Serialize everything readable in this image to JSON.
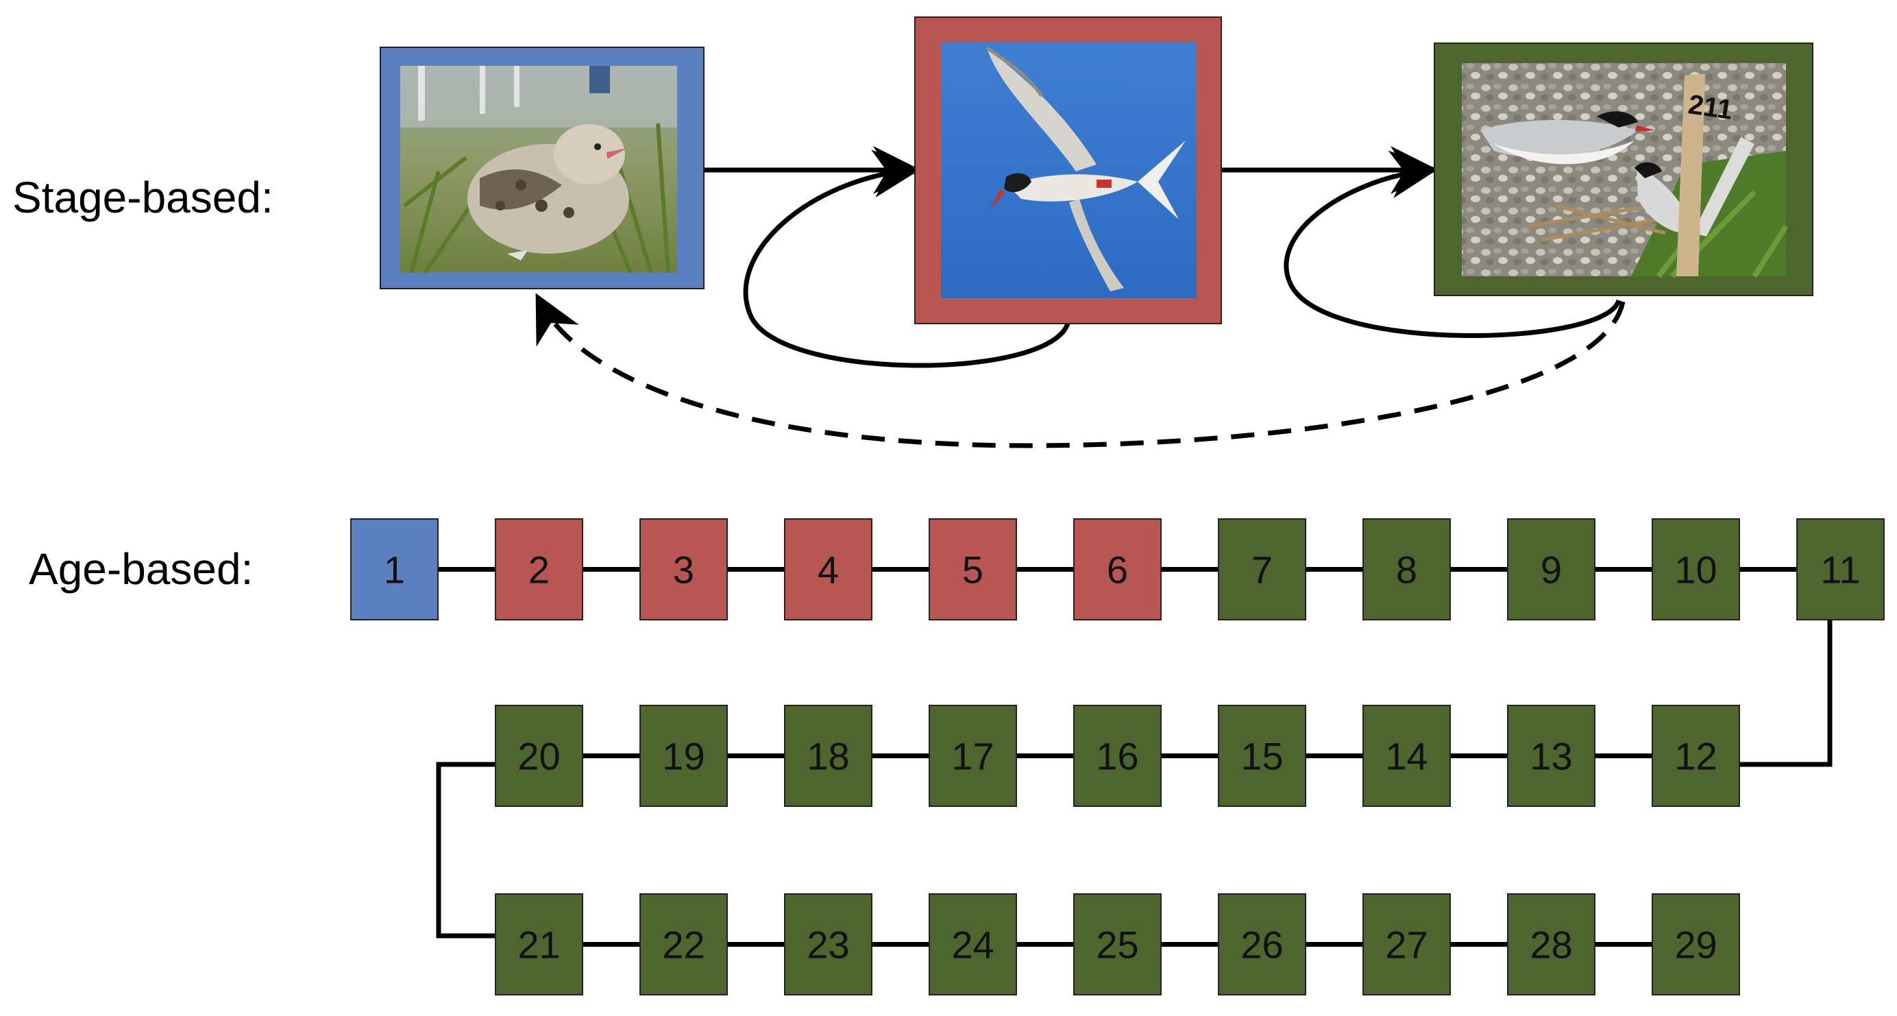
{
  "labels": {
    "stage_based": "Stage-based:",
    "age_based": "Age-based:"
  },
  "stages": [
    {
      "name": "chick",
      "image": "tern chick photo",
      "color": "#5b7fbf"
    },
    {
      "name": "juvenile",
      "image": "tern in flight photo",
      "color": "#b75652"
    },
    {
      "name": "adult",
      "image": "breeding adult terns photo",
      "color": "#4e6530"
    }
  ],
  "ages": [
    {
      "label": "1",
      "stage": 0
    },
    {
      "label": "2",
      "stage": 1
    },
    {
      "label": "3",
      "stage": 1
    },
    {
      "label": "4",
      "stage": 1
    },
    {
      "label": "5",
      "stage": 1
    },
    {
      "label": "6",
      "stage": 1
    },
    {
      "label": "7",
      "stage": 2
    },
    {
      "label": "8",
      "stage": 2
    },
    {
      "label": "9",
      "stage": 2
    },
    {
      "label": "10",
      "stage": 2
    },
    {
      "label": "11",
      "stage": 2
    },
    {
      "label": "12",
      "stage": 2
    },
    {
      "label": "13",
      "stage": 2
    },
    {
      "label": "14",
      "stage": 2
    },
    {
      "label": "15",
      "stage": 2
    },
    {
      "label": "16",
      "stage": 2
    },
    {
      "label": "17",
      "stage": 2
    },
    {
      "label": "18",
      "stage": 2
    },
    {
      "label": "19",
      "stage": 2
    },
    {
      "label": "20",
      "stage": 2
    },
    {
      "label": "21",
      "stage": 2
    },
    {
      "label": "22",
      "stage": 2
    },
    {
      "label": "23",
      "stage": 2
    },
    {
      "label": "24",
      "stage": 2
    },
    {
      "label": "25",
      "stage": 2
    },
    {
      "label": "26",
      "stage": 2
    },
    {
      "label": "27",
      "stage": 2
    },
    {
      "label": "28",
      "stage": 2
    },
    {
      "label": "29",
      "stage": 2
    }
  ],
  "colors": {
    "chick": "#5b7fbf",
    "juvenile": "#b75652",
    "adult": "#4e6530",
    "line": "#000000"
  },
  "photo_marks": {
    "post_number": "211"
  }
}
